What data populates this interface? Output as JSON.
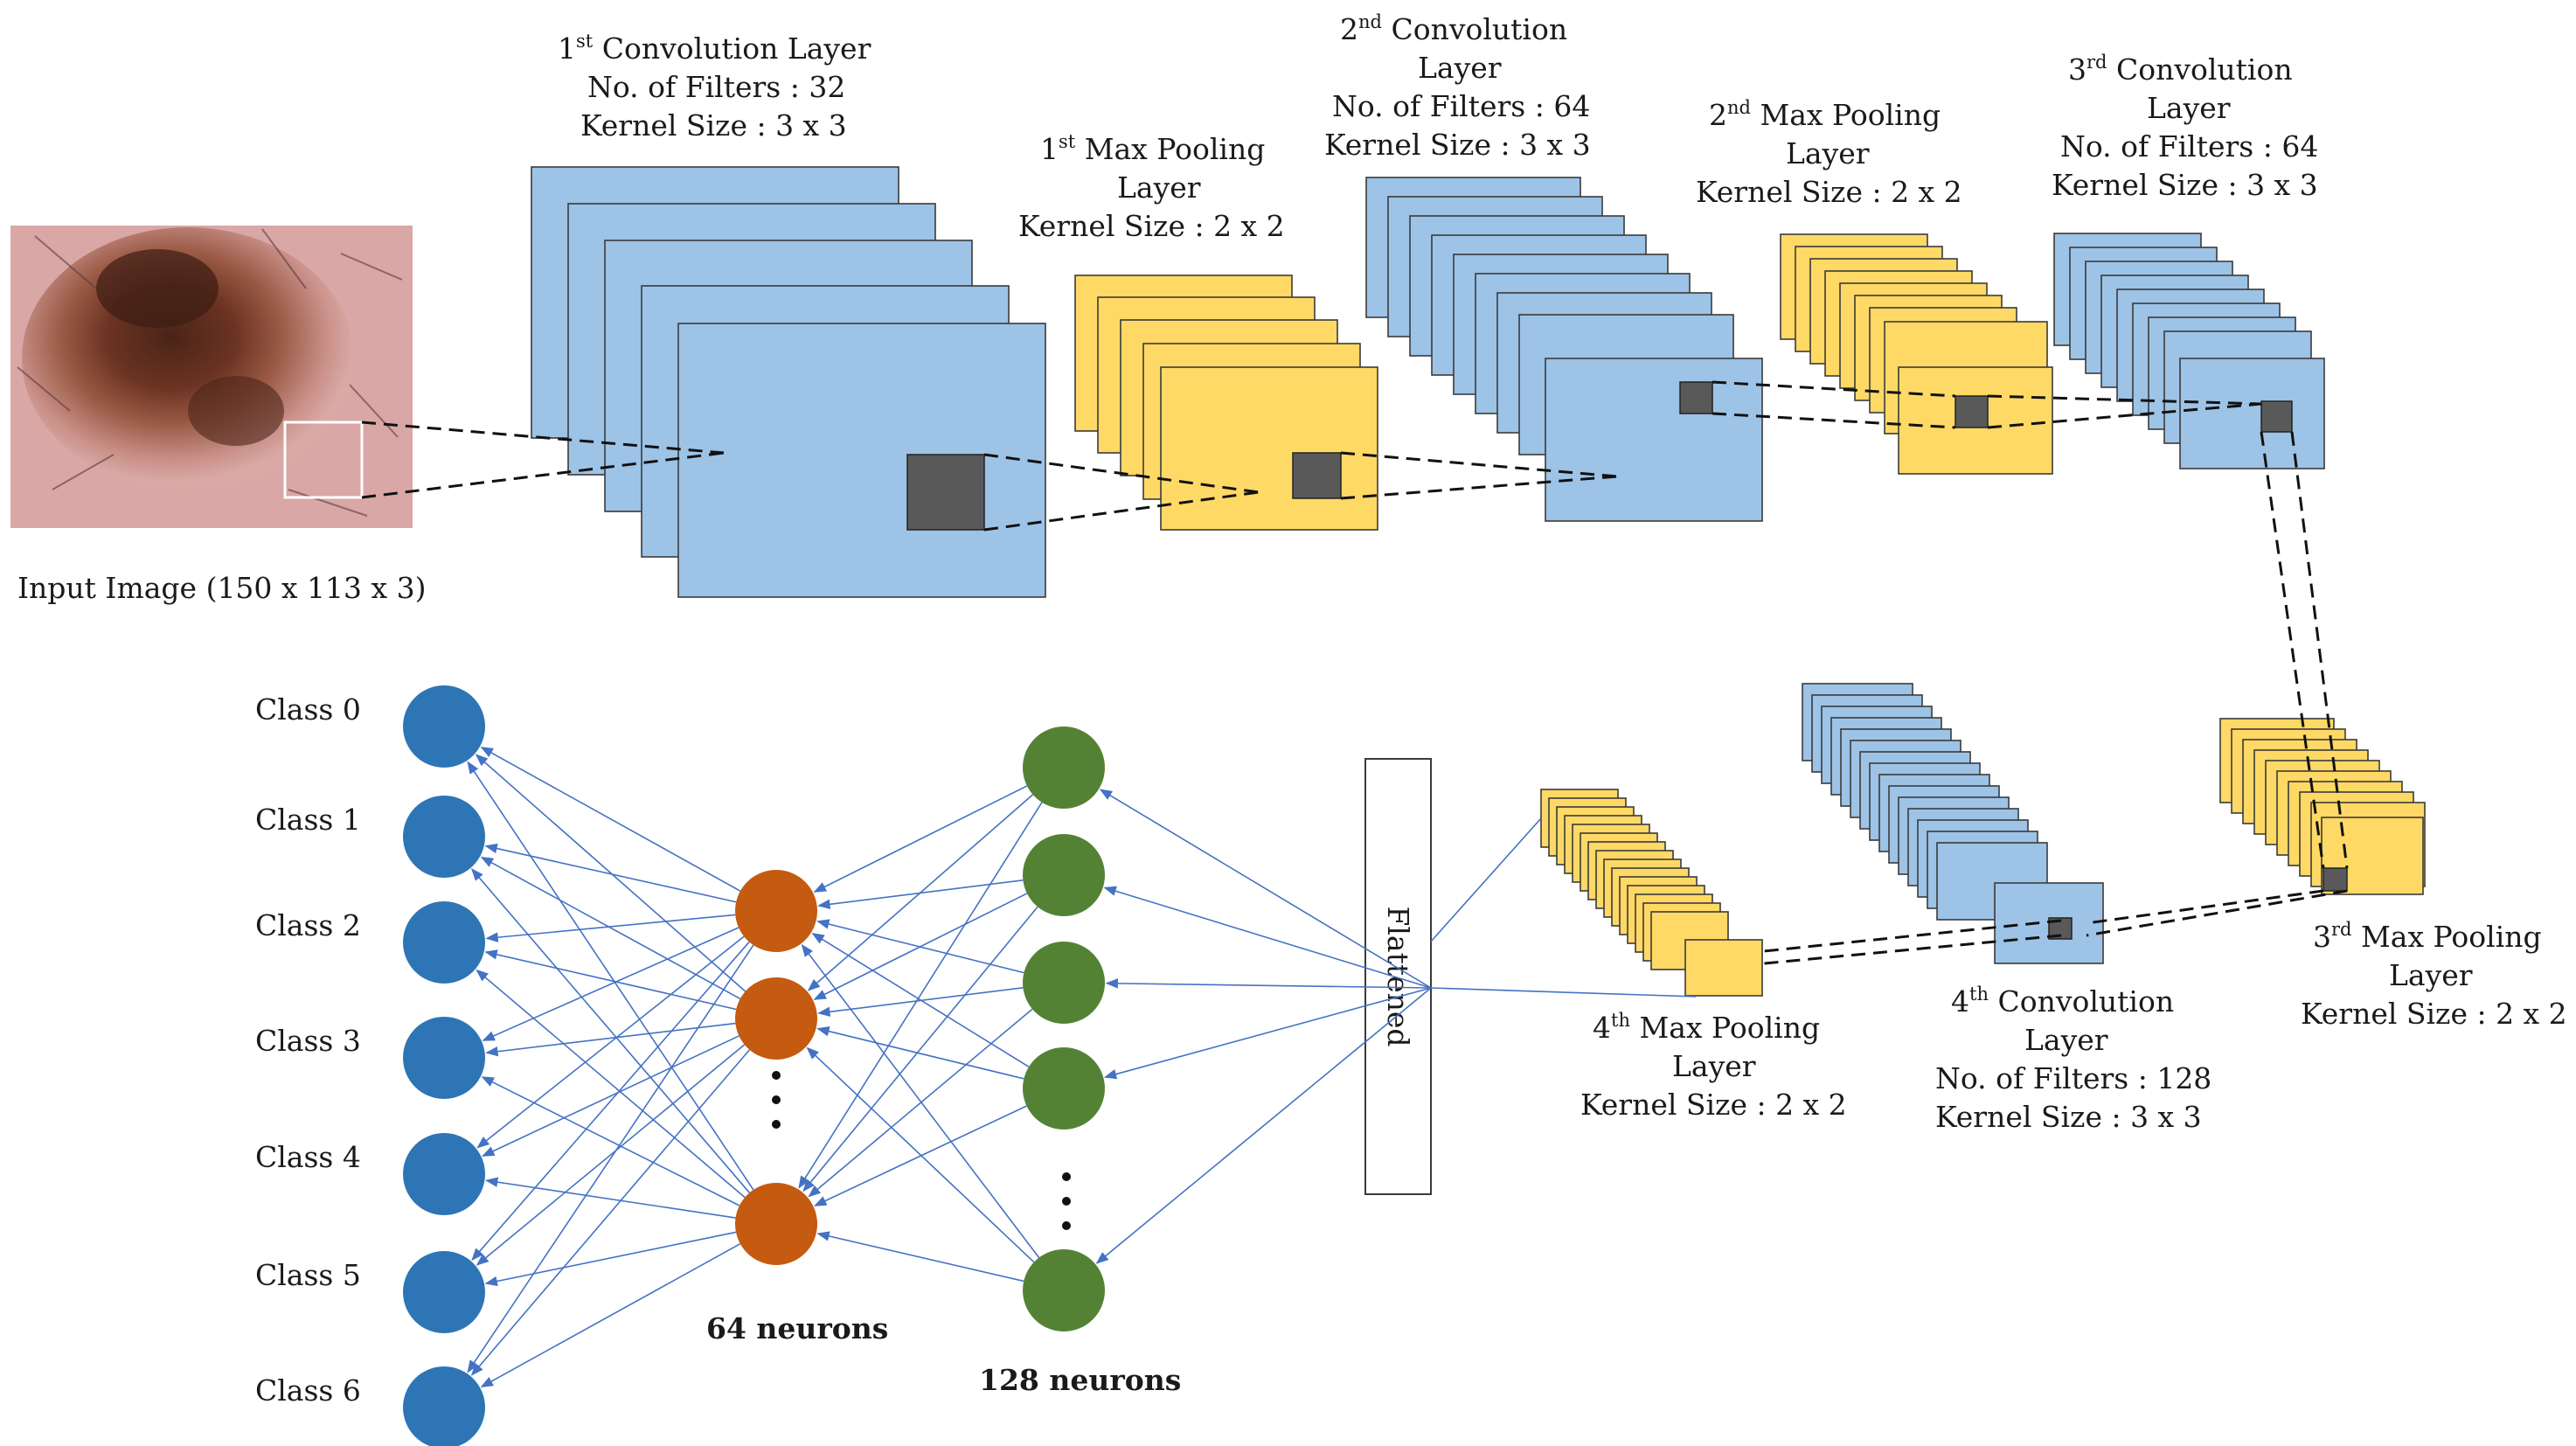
{
  "input": {
    "caption": "Input Image (150 x 113 x 3)"
  },
  "conv1": {
    "title_sup": "st",
    "title_num": "1",
    "title_rest": " Convolution Layer",
    "filters": "No. of Filters : 32",
    "kernel": "Kernel Size : 3 x 3"
  },
  "pool1": {
    "title_num": "1",
    "title_sup": "st",
    "title_rest": " Max Pooling",
    "line2": "Layer",
    "kernel": "Kernel Size : 2 x 2"
  },
  "conv2": {
    "title_num": "2",
    "title_sup": "nd",
    "title_rest": "  Convolution",
    "line2": "Layer",
    "filters": "No. of Filters : 64",
    "kernel": "Kernel Size : 3 x 3"
  },
  "pool2": {
    "title_num": "2",
    "title_sup": "nd",
    "title_rest": "  Max Pooling",
    "line2": "Layer",
    "kernel": "Kernel Size : 2 x 2"
  },
  "conv3": {
    "title_num": "3",
    "title_sup": "rd",
    "title_rest": "  Convolution",
    "line2": "Layer",
    "filters": "No. of Filters : 64",
    "kernel": "Kernel Size : 3 x 3"
  },
  "pool3": {
    "title_num": "3",
    "title_sup": "rd",
    "title_rest": "  Max Pooling",
    "line2": "Layer",
    "kernel": "Kernel Size : 2 x 2"
  },
  "conv4": {
    "title_num": "4",
    "title_sup": "th",
    "title_rest": "   Convolution",
    "line2": "Layer",
    "filters": "No. of Filters : 128",
    "kernel": "Kernel Size : 3 x 3"
  },
  "pool4": {
    "title_num": "4",
    "title_sup": "th",
    "title_rest": "   Max Pooling",
    "line2": "Layer",
    "kernel": "Kernel Size : 2 x 2"
  },
  "flatten": {
    "label": "Flattened"
  },
  "dense128": {
    "label": "128 neurons",
    "color": "#548235"
  },
  "dense64": {
    "label": "64 neurons",
    "color": "#c55a11"
  },
  "output": {
    "color": "#2e75b6",
    "classes": [
      "Class 0",
      "Class 1",
      "Class 2",
      "Class 3",
      "Class 4",
      "Class 5",
      "Class 6"
    ]
  },
  "colors": {
    "conv": "#9dc3e6",
    "pool": "#ffd966",
    "connection": "#4472c4"
  }
}
